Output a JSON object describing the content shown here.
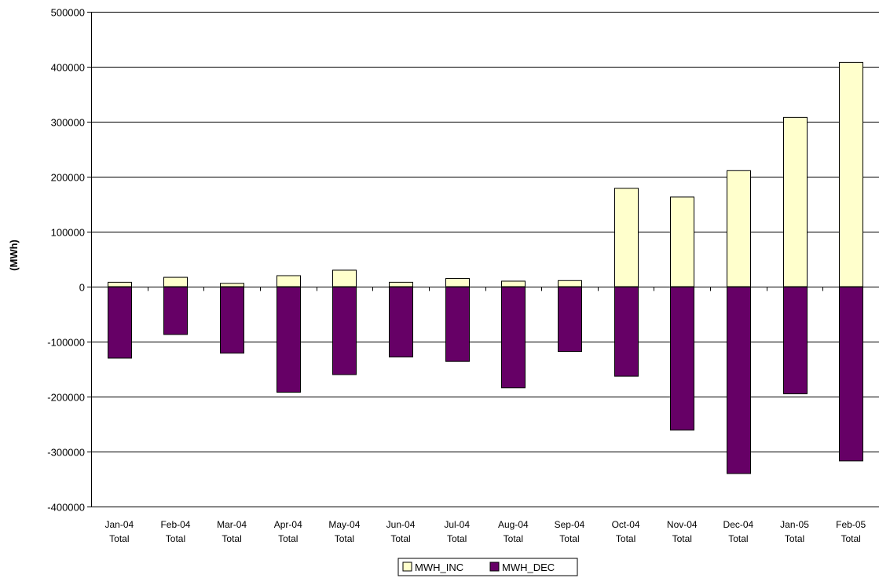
{
  "chart_data": {
    "type": "bar",
    "stacked": true,
    "title": "",
    "xlabel": "",
    "ylabel": "(MWh)",
    "ylim": [
      -400000,
      500000
    ],
    "yticks": [
      -400000,
      -300000,
      -200000,
      -100000,
      0,
      100000,
      200000,
      300000,
      400000,
      500000
    ],
    "ytick_labels": [
      "-400000",
      "-300000",
      "-200000",
      "-100000",
      "0",
      "100000",
      "200000",
      "300000",
      "400000",
      "500000"
    ],
    "grid": true,
    "legend": "bottom",
    "categories": [
      [
        "Jan-04",
        "Total"
      ],
      [
        "Feb-04",
        "Total"
      ],
      [
        "Mar-04",
        "Total"
      ],
      [
        "Apr-04",
        "Total"
      ],
      [
        "May-04",
        "Total"
      ],
      [
        "Jun-04",
        "Total"
      ],
      [
        "Jul-04",
        "Total"
      ],
      [
        "Aug-04",
        "Total"
      ],
      [
        "Sep-04",
        "Total"
      ],
      [
        "Oct-04",
        "Total"
      ],
      [
        "Nov-04",
        "Total"
      ],
      [
        "Dec-04",
        "Total"
      ],
      [
        "Jan-05",
        "Total"
      ],
      [
        "Feb-05",
        "Total"
      ]
    ],
    "series": [
      {
        "name": "MWH_INC",
        "color": "#FFFFCC",
        "values": [
          8000,
          17000,
          6000,
          20000,
          30000,
          8000,
          15000,
          10000,
          11000,
          179000,
          163000,
          211000,
          308000,
          408000
        ]
      },
      {
        "name": "MWH_DEC",
        "color": "#660066",
        "values": [
          -130000,
          -87000,
          -121000,
          -192000,
          -160000,
          -128000,
          -136000,
          -184000,
          -118000,
          -163000,
          -261000,
          -340000,
          -195000,
          -317000
        ]
      }
    ]
  }
}
